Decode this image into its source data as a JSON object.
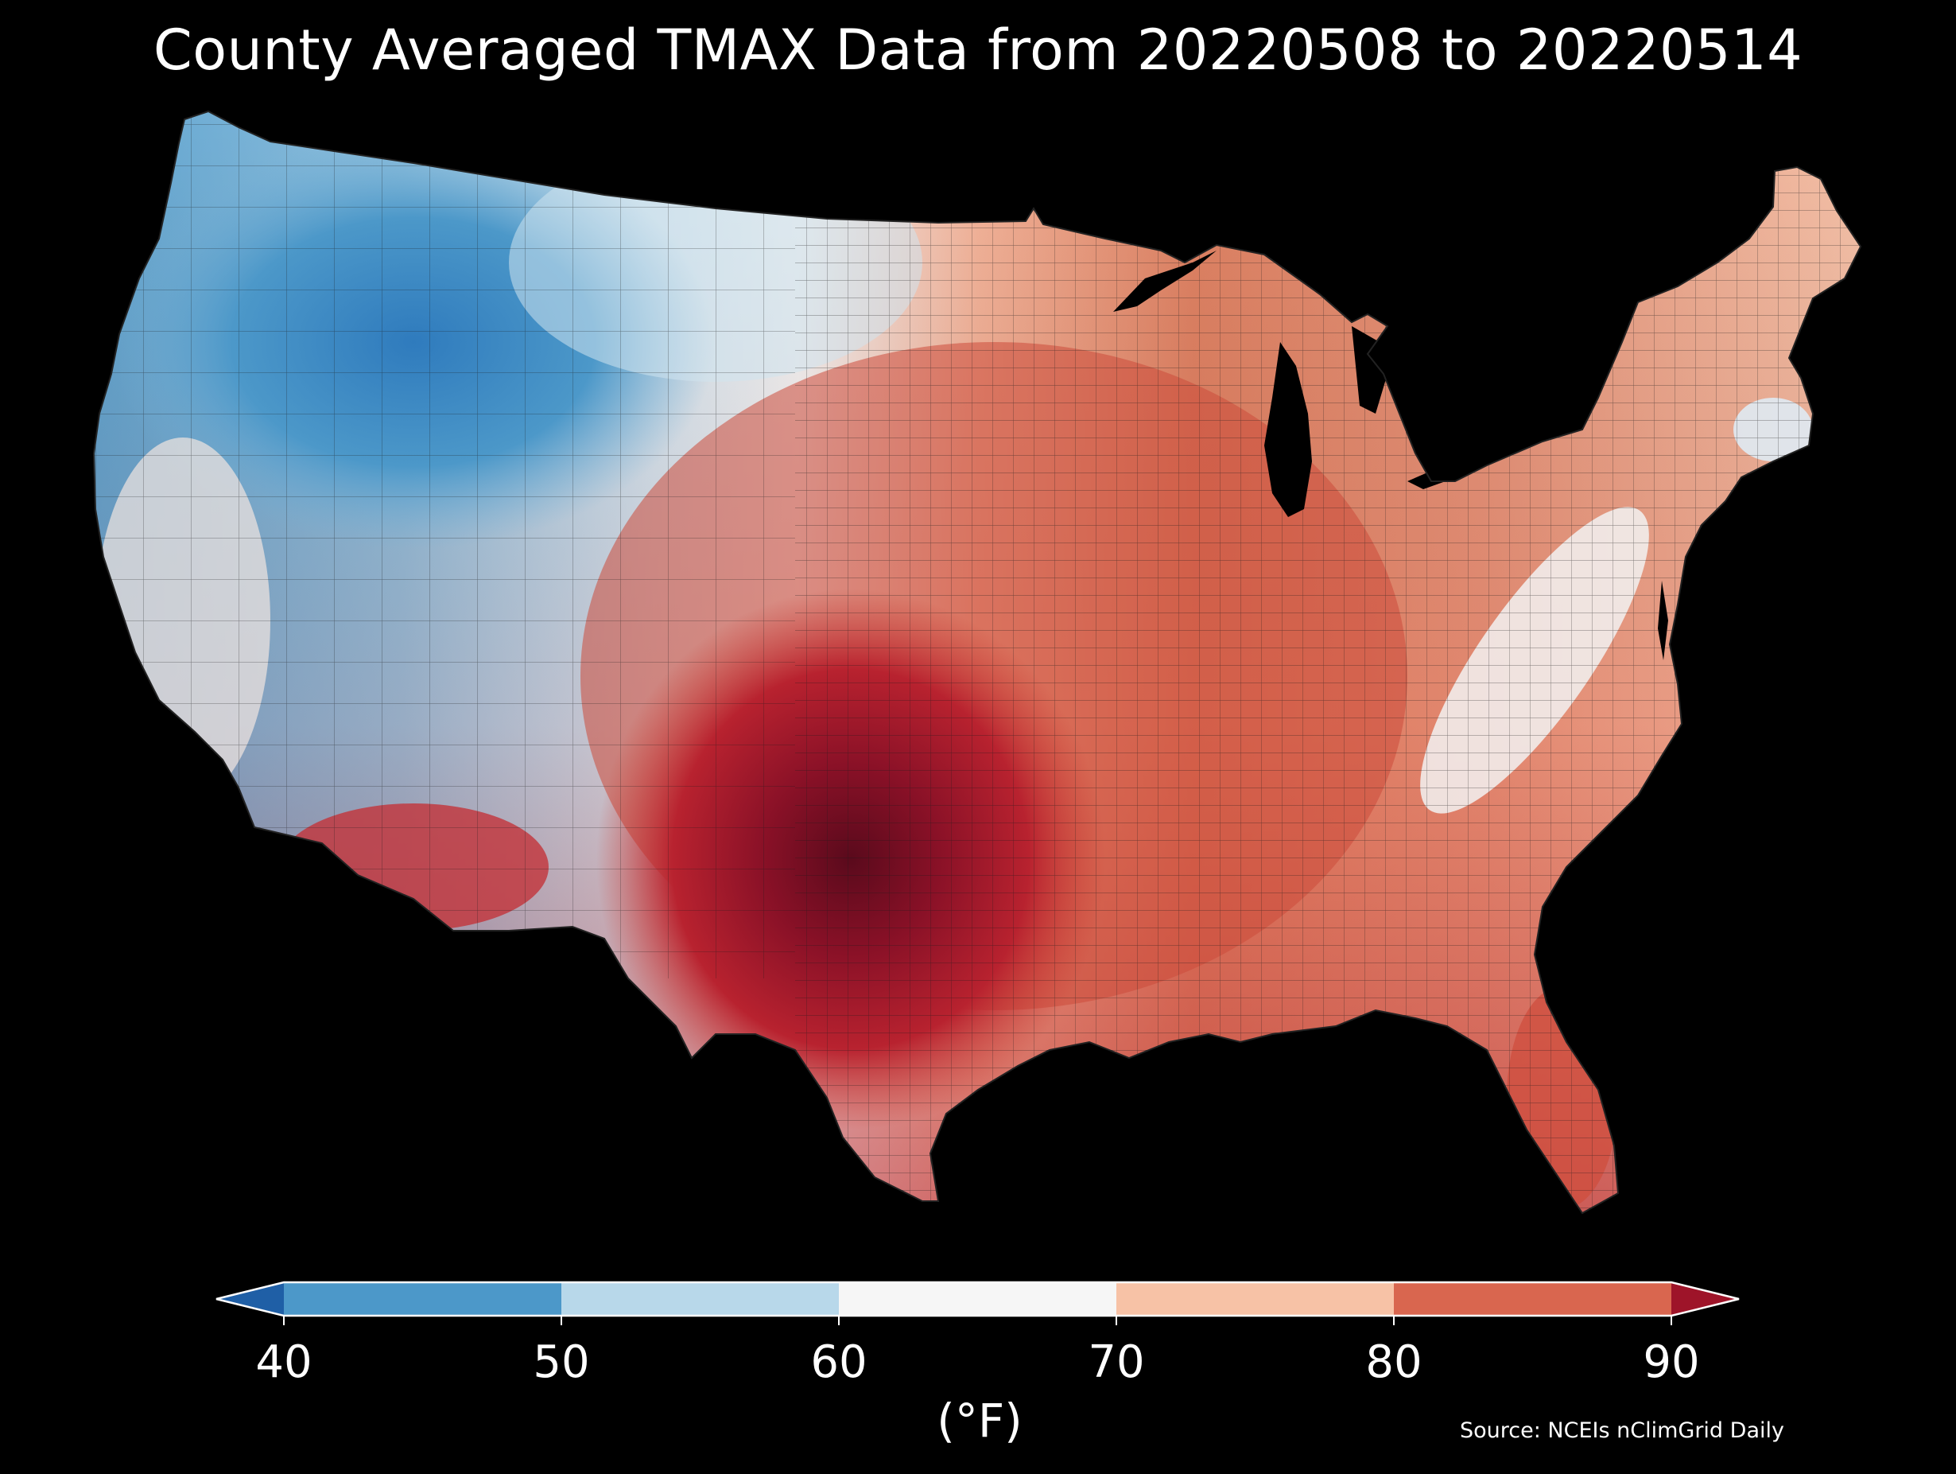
{
  "title": "County Averaged TMAX Data from 20220508 to 20220514",
  "colorbar": {
    "ticks": [
      "40",
      "50",
      "60",
      "70",
      "80",
      "90"
    ],
    "unit": "(°F)",
    "bins": [
      {
        "range": "<40",
        "color": "#1f5fa6"
      },
      {
        "range": "40-50",
        "color": "#4c98c9"
      },
      {
        "range": "50-60",
        "color": "#b8d8ea"
      },
      {
        "range": "60-70",
        "color": "#f6f6f6"
      },
      {
        "range": "70-80",
        "color": "#f7c2a6"
      },
      {
        "range": "80-90",
        "color": "#d9664f"
      },
      {
        "range": ">90",
        "color": "#9e1429"
      }
    ],
    "extend": "both"
  },
  "source": "Source: NCEIs nClimGrid Daily",
  "map": {
    "region": "Contiguous United States",
    "variable": "TMAX",
    "aggregation": "county average",
    "pattern": "cold northwest, hot south-central",
    "colors": {
      "background": "#000000",
      "county_border": "#1a1a1a"
    }
  }
}
